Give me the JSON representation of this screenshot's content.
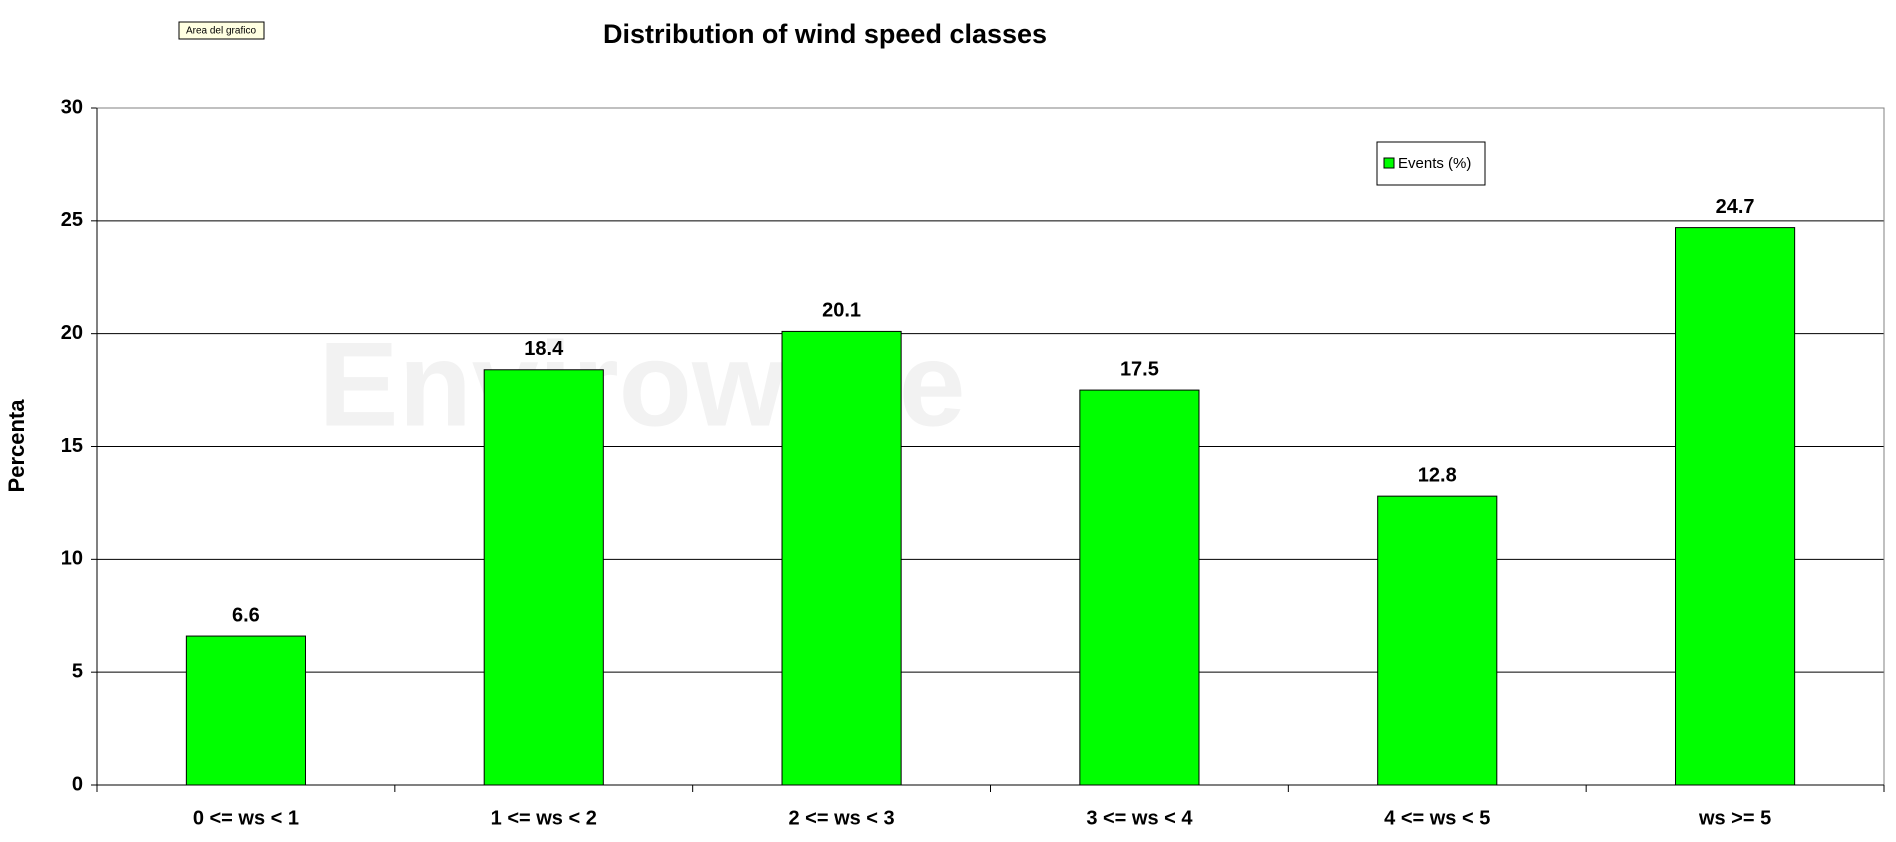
{
  "chart_data": {
    "type": "bar",
    "title": "Distribution of wind speed classes",
    "tooltip": "Area del grafico",
    "watermark": "Enviroware",
    "y_label": "Percenta",
    "categories": [
      "0 <= ws < 1",
      "1 <= ws < 2",
      "2 <= ws < 3",
      "3 <= ws < 4",
      "4 <= ws < 5",
      "ws >= 5"
    ],
    "series": [
      {
        "name": "Events (%)",
        "color": "#00ff00",
        "values": [
          6.6,
          18.4,
          20.1,
          17.5,
          12.8,
          24.7
        ]
      }
    ],
    "ylim": [
      0,
      30
    ],
    "yticks": [
      0,
      5,
      10,
      15,
      20,
      25,
      30
    ],
    "grid": true,
    "legend": "top-right"
  }
}
